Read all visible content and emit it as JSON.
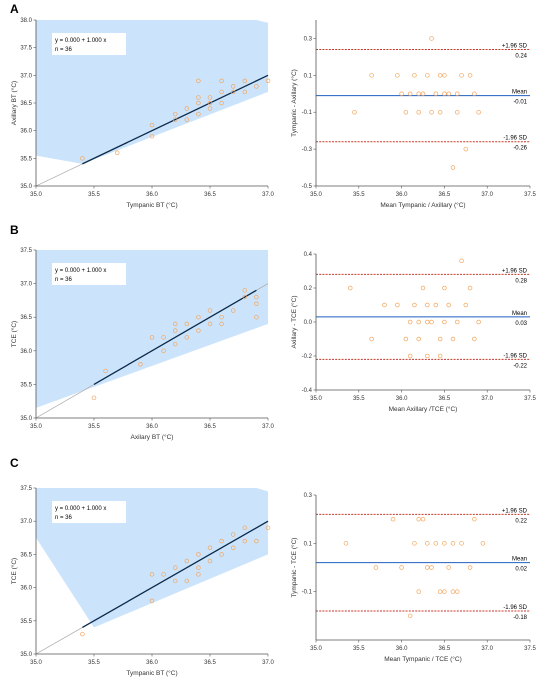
{
  "chart_data": [
    {
      "panel": "A",
      "type": "scatter",
      "subtype": "regression",
      "xlabel": "Tympanic BT (°C)",
      "ylabel": "Axillary BT (°C)",
      "xlim": [
        35.0,
        37.0
      ],
      "ylim": [
        35.0,
        38.0
      ],
      "xticks": [
        "35.0",
        "35.5",
        "36.0",
        "36.5",
        "37.0"
      ],
      "yticks": [
        "35.0",
        "35.5",
        "36.0",
        "36.5",
        "37.0",
        "37.5",
        "38.0"
      ],
      "equation": "y = 0.000 + 1.000 x",
      "n_text": "n = 36",
      "band_color": "#cce4fb",
      "line_color": "#0b2a4a",
      "point_color": "#f2a65e",
      "fit": {
        "x": [
          35.4,
          37.0
        ],
        "y": [
          35.4,
          37.0
        ]
      },
      "identity": {
        "x": [
          35.0,
          37.0
        ],
        "y": [
          35.0,
          37.0
        ]
      },
      "band_lower": {
        "x": [
          35.0,
          35.4,
          37.0,
          37.0
        ],
        "y": [
          35.55,
          35.4,
          36.7,
          36.7
        ]
      },
      "band_upper": {
        "x": [
          35.0,
          36.9,
          37.0
        ],
        "y": [
          38.0,
          38.0,
          37.95
        ]
      },
      "points": {
        "x": [
          35.4,
          35.7,
          36.0,
          36.0,
          36.2,
          36.2,
          36.3,
          36.3,
          36.4,
          36.4,
          36.4,
          36.4,
          36.5,
          36.5,
          36.5,
          36.6,
          36.6,
          36.6,
          36.7,
          36.7,
          36.8,
          36.8,
          36.9,
          37.0
        ],
        "y": [
          35.5,
          35.6,
          35.9,
          36.1,
          36.2,
          36.3,
          36.2,
          36.4,
          36.3,
          36.5,
          36.6,
          36.9,
          36.4,
          36.5,
          36.6,
          36.5,
          36.7,
          36.9,
          36.7,
          36.8,
          36.7,
          36.9,
          36.8,
          36.9
        ]
      }
    },
    {
      "panel": "A",
      "type": "scatter",
      "subtype": "bland-altman",
      "xlabel": "Mean Tympanic / Axillary (°C)",
      "ylabel": "Tympanic - Axillary (°C)",
      "xlim": [
        35.0,
        37.5
      ],
      "ylim": [
        -0.5,
        0.4
      ],
      "xticks": [
        "35.0",
        "35.5",
        "36.0",
        "36.5",
        "37.0",
        "37.5"
      ],
      "yticks": [
        "-0.5",
        "-0.3",
        "-0.1",
        "0.1",
        "0.3"
      ],
      "upper": {
        "value": 0.24,
        "label": "+1.96 SD",
        "value_label": "0.24"
      },
      "mean": {
        "value": -0.01,
        "label": "Mean",
        "value_label": "-0.01"
      },
      "lower": {
        "value": -0.26,
        "label": "-1.96 SD",
        "value_label": "-0.26"
      },
      "sd_color": "#c0392b",
      "mean_color": "#1f5fbf",
      "point_color": "#f2a65e",
      "points": {
        "x": [
          35.45,
          35.65,
          35.95,
          36.0,
          36.05,
          36.1,
          36.15,
          36.2,
          36.2,
          36.25,
          36.3,
          36.35,
          36.35,
          36.4,
          36.45,
          36.45,
          36.5,
          36.5,
          36.55,
          36.6,
          36.65,
          36.65,
          36.7,
          36.75,
          36.8,
          36.85,
          36.9
        ],
        "y": [
          -0.1,
          0.1,
          0.1,
          0.0,
          -0.1,
          0.0,
          0.1,
          0.0,
          -0.1,
          0.0,
          0.1,
          0.3,
          -0.1,
          0.0,
          0.1,
          -0.1,
          0.0,
          0.1,
          0.0,
          -0.4,
          0.0,
          -0.1,
          0.1,
          -0.3,
          0.1,
          0.0,
          -0.1
        ]
      }
    },
    {
      "panel": "B",
      "type": "scatter",
      "subtype": "regression",
      "xlabel": "Axilary BT (°C)",
      "ylabel": "TCE (°C)",
      "xlim": [
        35.0,
        37.0
      ],
      "ylim": [
        35.0,
        37.5
      ],
      "xticks": [
        "35.0",
        "35.5",
        "36.0",
        "36.5",
        "37.0"
      ],
      "yticks": [
        "35.0",
        "35.5",
        "36.0",
        "36.5",
        "37.0",
        "37.5"
      ],
      "equation": "y = 0.000 + 1.000 x",
      "n_text": "n = 36",
      "band_color": "#cce4fb",
      "line_color": "#0b2a4a",
      "point_color": "#f2a65e",
      "fit": {
        "x": [
          35.5,
          36.9
        ],
        "y": [
          35.5,
          36.9
        ]
      },
      "identity": {
        "x": [
          35.0,
          37.0
        ],
        "y": [
          35.0,
          37.0
        ]
      },
      "band_lower": {
        "x": [
          35.0,
          37.0
        ],
        "y": [
          35.15,
          36.4
        ]
      },
      "band_upper": {
        "x": [
          35.0,
          37.0
        ],
        "y": [
          37.5,
          37.5
        ]
      },
      "points": {
        "x": [
          35.5,
          35.6,
          35.9,
          36.0,
          36.1,
          36.1,
          36.2,
          36.2,
          36.2,
          36.3,
          36.3,
          36.4,
          36.4,
          36.5,
          36.5,
          36.6,
          36.6,
          36.7,
          36.8,
          36.8,
          36.9,
          36.9,
          36.9
        ],
        "y": [
          35.3,
          35.7,
          35.8,
          36.2,
          36.2,
          36.0,
          36.3,
          36.4,
          36.1,
          36.4,
          36.2,
          36.5,
          36.3,
          36.4,
          36.6,
          36.5,
          36.4,
          36.6,
          36.8,
          36.9,
          36.5,
          36.7,
          36.8
        ]
      }
    },
    {
      "panel": "B",
      "type": "scatter",
      "subtype": "bland-altman",
      "xlabel": "Mean Axillary /TCE (°C)",
      "ylabel": "Axillary - TCE (°C)",
      "xlim": [
        35.0,
        37.5
      ],
      "ylim": [
        -0.4,
        0.4
      ],
      "xticks": [
        "35.0",
        "35.5",
        "36.0",
        "36.5",
        "37.0",
        "37.5"
      ],
      "yticks": [
        "-0.4",
        "-0.2",
        "0.0",
        "0.2",
        "0.4"
      ],
      "upper": {
        "value": 0.28,
        "label": "+1.96 SD",
        "value_label": "0.28"
      },
      "mean": {
        "value": 0.03,
        "label": "Mean",
        "value_label": "0.03"
      },
      "lower": {
        "value": -0.22,
        "label": "-1.96 SD",
        "value_label": "-0.22"
      },
      "sd_color": "#c0392b",
      "mean_color": "#1f5fbf",
      "point_color": "#f2a65e",
      "points": {
        "x": [
          35.4,
          35.65,
          35.8,
          35.95,
          36.05,
          36.1,
          36.1,
          36.15,
          36.2,
          36.2,
          36.25,
          36.3,
          36.3,
          36.35,
          36.4,
          36.45,
          36.5,
          36.5,
          36.55,
          36.6,
          36.65,
          36.7,
          36.75,
          36.8,
          36.85,
          36.9,
          36.3,
          36.45
        ],
        "y": [
          0.2,
          -0.1,
          0.1,
          0.1,
          -0.1,
          0.0,
          -0.2,
          0.1,
          0.0,
          -0.1,
          0.2,
          0.1,
          -0.2,
          0.0,
          0.1,
          -0.1,
          0.2,
          0.0,
          0.1,
          -0.1,
          0.0,
          0.36,
          0.1,
          0.2,
          -0.1,
          0.0,
          0.0,
          -0.2
        ]
      }
    },
    {
      "panel": "C",
      "type": "scatter",
      "subtype": "regression",
      "xlabel": "Tympanic BT (°C)",
      "ylabel": "TCE (°C)",
      "xlim": [
        35.0,
        37.0
      ],
      "ylim": [
        35.0,
        37.5
      ],
      "xticks": [
        "35.0",
        "35.5",
        "36.0",
        "36.5",
        "37.0"
      ],
      "yticks": [
        "35.0",
        "35.5",
        "36.0",
        "36.5",
        "37.0",
        "37.5"
      ],
      "equation": "y = 0.000 + 1.000 x",
      "n_text": "n = 36",
      "band_color": "#cce4fb",
      "line_color": "#0b2a4a",
      "point_color": "#f2a65e",
      "fit": {
        "x": [
          35.4,
          37.0
        ],
        "y": [
          35.4,
          37.0
        ]
      },
      "identity": {
        "x": [
          35.0,
          37.0
        ],
        "y": [
          35.0,
          37.0
        ]
      },
      "band_lower": {
        "x": [
          35.0,
          35.5,
          37.0,
          37.0
        ],
        "y": [
          36.75,
          35.4,
          36.5,
          36.5
        ]
      },
      "band_upper": {
        "x": [
          35.0,
          36.9,
          37.0
        ],
        "y": [
          37.5,
          37.5,
          37.45
        ]
      },
      "points": {
        "x": [
          35.4,
          36.0,
          36.0,
          36.1,
          36.2,
          36.2,
          36.3,
          36.3,
          36.4,
          36.4,
          36.4,
          36.5,
          36.5,
          36.6,
          36.6,
          36.7,
          36.7,
          36.8,
          36.8,
          36.9,
          37.0
        ],
        "y": [
          35.3,
          35.8,
          36.2,
          36.2,
          36.1,
          36.3,
          36.1,
          36.4,
          36.2,
          36.3,
          36.5,
          36.4,
          36.6,
          36.5,
          36.7,
          36.6,
          36.8,
          36.7,
          36.9,
          36.7,
          36.9
        ]
      }
    },
    {
      "panel": "C",
      "type": "scatter",
      "subtype": "bland-altman",
      "xlabel": "Mean Tympanic / TCE (°C)",
      "ylabel": "Tympanic - TCE (°C)",
      "xlim": [
        35.0,
        37.5
      ],
      "ylim": [
        -0.3,
        0.3
      ],
      "xticks": [
        "35.0",
        "35.5",
        "36.0",
        "36.5",
        "37.0",
        "37.5"
      ],
      "yticks": [
        "-0.1",
        "0.1",
        "0.3"
      ],
      "upper": {
        "value": 0.22,
        "label": "+1.96 SD",
        "value_label": "0.22"
      },
      "mean": {
        "value": 0.02,
        "label": "Mean",
        "value_label": "0.02"
      },
      "lower": {
        "value": -0.18,
        "label": "-1.96 SD",
        "value_label": "-0.18"
      },
      "sd_color": "#c0392b",
      "mean_color": "#1f5fbf",
      "point_color": "#f2a65e",
      "points": {
        "x": [
          35.35,
          35.7,
          35.9,
          36.0,
          36.1,
          36.15,
          36.2,
          36.2,
          36.25,
          36.3,
          36.35,
          36.4,
          36.45,
          36.5,
          36.55,
          36.6,
          36.65,
          36.7,
          36.8,
          36.85,
          36.95,
          36.6,
          36.3,
          36.5
        ],
        "y": [
          0.1,
          0.0,
          0.2,
          0.0,
          -0.2,
          0.1,
          0.2,
          -0.1,
          0.2,
          0.1,
          0.0,
          0.1,
          -0.1,
          0.1,
          0.0,
          0.1,
          -0.1,
          0.1,
          0.0,
          0.2,
          0.1,
          -0.1,
          0.0,
          -0.1
        ]
      }
    }
  ],
  "panels": [
    {
      "label": "A"
    },
    {
      "label": "B"
    },
    {
      "label": "C"
    }
  ]
}
